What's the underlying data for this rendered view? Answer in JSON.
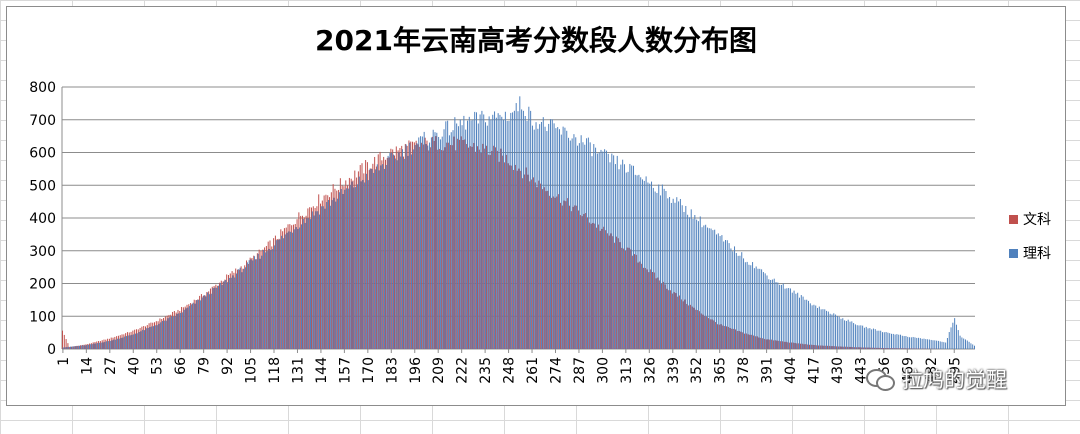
{
  "chart_data": {
    "type": "bar",
    "title": "2021年云南高考分数段人数分布图",
    "xlabel": "",
    "ylabel": "",
    "ylim": [
      0,
      800
    ],
    "yticks": [
      0,
      100,
      200,
      300,
      400,
      500,
      600,
      700,
      800
    ],
    "grid": true,
    "legend_position": "right",
    "x_tick_labels": [
      1,
      14,
      27,
      40,
      53,
      66,
      79,
      92,
      105,
      118,
      131,
      144,
      157,
      170,
      183,
      196,
      209,
      222,
      235,
      248,
      261,
      274,
      287,
      300,
      313,
      326,
      339,
      352,
      365,
      378,
      391,
      404,
      417,
      430,
      443,
      456,
      469,
      482,
      495
    ],
    "x_min": 1,
    "x_max": 506,
    "series": [
      {
        "name": "文科",
        "color": "#c0504d",
        "points": [
          [
            1,
            55
          ],
          [
            5,
            6
          ],
          [
            14,
            14
          ],
          [
            27,
            32
          ],
          [
            40,
            55
          ],
          [
            53,
            85
          ],
          [
            66,
            120
          ],
          [
            79,
            165
          ],
          [
            92,
            220
          ],
          [
            105,
            270
          ],
          [
            118,
            330
          ],
          [
            131,
            400
          ],
          [
            144,
            460
          ],
          [
            157,
            510
          ],
          [
            170,
            560
          ],
          [
            183,
            600
          ],
          [
            196,
            620
          ],
          [
            209,
            630
          ],
          [
            222,
            625
          ],
          [
            235,
            610
          ],
          [
            248,
            580
          ],
          [
            261,
            520
          ],
          [
            274,
            470
          ],
          [
            287,
            420
          ],
          [
            300,
            365
          ],
          [
            313,
            310
          ],
          [
            326,
            240
          ],
          [
            339,
            175
          ],
          [
            352,
            120
          ],
          [
            365,
            75
          ],
          [
            378,
            50
          ],
          [
            391,
            30
          ],
          [
            404,
            20
          ],
          [
            417,
            12
          ],
          [
            430,
            8
          ],
          [
            443,
            5
          ],
          [
            456,
            3
          ],
          [
            469,
            2
          ],
          [
            482,
            1
          ],
          [
            495,
            0
          ],
          [
            506,
            0
          ]
        ]
      },
      {
        "name": "理科",
        "color": "#4f81bd",
        "points": [
          [
            1,
            5
          ],
          [
            14,
            12
          ],
          [
            27,
            25
          ],
          [
            40,
            45
          ],
          [
            53,
            75
          ],
          [
            66,
            110
          ],
          [
            79,
            160
          ],
          [
            92,
            210
          ],
          [
            105,
            265
          ],
          [
            118,
            320
          ],
          [
            131,
            380
          ],
          [
            144,
            430
          ],
          [
            157,
            480
          ],
          [
            170,
            530
          ],
          [
            183,
            580
          ],
          [
            196,
            625
          ],
          [
            209,
            660
          ],
          [
            222,
            690
          ],
          [
            235,
            705
          ],
          [
            248,
            715
          ],
          [
            255,
            750
          ],
          [
            261,
            700
          ],
          [
            274,
            670
          ],
          [
            287,
            640
          ],
          [
            300,
            590
          ],
          [
            313,
            555
          ],
          [
            326,
            510
          ],
          [
            339,
            460
          ],
          [
            352,
            400
          ],
          [
            365,
            340
          ],
          [
            378,
            280
          ],
          [
            391,
            225
          ],
          [
            404,
            180
          ],
          [
            417,
            135
          ],
          [
            430,
            100
          ],
          [
            443,
            70
          ],
          [
            456,
            52
          ],
          [
            469,
            38
          ],
          [
            482,
            28
          ],
          [
            490,
            20
          ],
          [
            495,
            95
          ],
          [
            498,
            40
          ],
          [
            506,
            10
          ]
        ]
      }
    ]
  },
  "legend": {
    "items": [
      {
        "label": "文科",
        "color": "#c0504d"
      },
      {
        "label": "理科",
        "color": "#4f81bd"
      }
    ]
  },
  "watermark": {
    "text": "拉鸠的觉醒",
    "icon": "wechat-icon"
  }
}
